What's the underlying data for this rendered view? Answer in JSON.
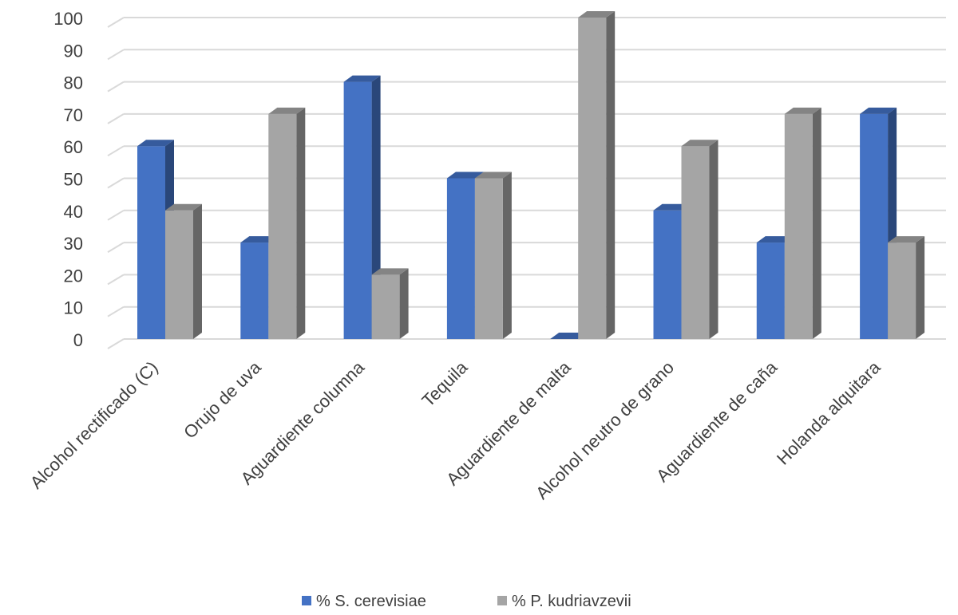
{
  "chart_data": {
    "type": "bar",
    "categories": [
      "Alcohol rectificado (C)",
      "Orujo de uva",
      "Aguardiente columna",
      "Tequila",
      "Aguardiente de malta",
      "Alcohol neutro de grano",
      "Aguardiente de caña",
      "Holanda alquitara"
    ],
    "series": [
      {
        "name": "% S. cerevisiae",
        "values": [
          60,
          30,
          80,
          50,
          0,
          40,
          30,
          70
        ],
        "color": "#4472C4"
      },
      {
        "name": "% P. kudriavzevii",
        "values": [
          40,
          70,
          20,
          50,
          100,
          60,
          70,
          30
        ],
        "color": "#A5A5A5"
      }
    ],
    "yticks": [
      0,
      10,
      20,
      30,
      40,
      50,
      60,
      70,
      80,
      90,
      100
    ],
    "ylim": [
      0,
      100
    ],
    "title": "",
    "xlabel": "",
    "ylabel": "",
    "grid": true,
    "legend_position": "bottom",
    "style": "3d-clustered-column"
  }
}
